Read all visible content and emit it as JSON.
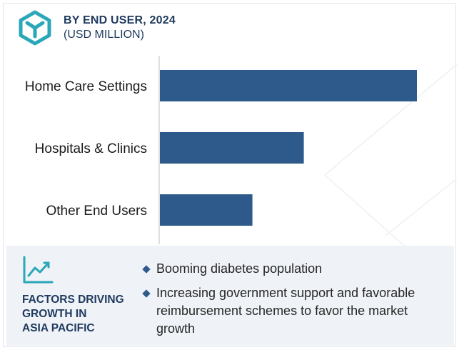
{
  "header": {
    "title": "BY END USER, 2024",
    "subtitle": "(USD MILLION)"
  },
  "colors": {
    "bar": "#2d5a8a",
    "title": "#1f3a5f",
    "panel": "#eff2f6"
  },
  "chart_data": {
    "type": "bar",
    "orientation": "horizontal",
    "categories": [
      "Home Care Settings",
      "Hospitals & Clinics",
      "Other End Users"
    ],
    "values": [
      100,
      56,
      36
    ],
    "value_scale": "relative (no axis values printed)",
    "title": "BY END USER, 2024",
    "subtitle": "(USD MILLION)",
    "xlabel": "",
    "ylabel": "",
    "grid": false,
    "legend": "none"
  },
  "factors": {
    "icon": "trend-line-icon",
    "heading_lines": [
      "FACTORS DRIVING",
      "GROWTH IN",
      "ASIA PACIFIC"
    ],
    "bullets": [
      "Booming diabetes population",
      "Increasing government support and favorable reimbursement schemes to favor the market growth"
    ]
  }
}
